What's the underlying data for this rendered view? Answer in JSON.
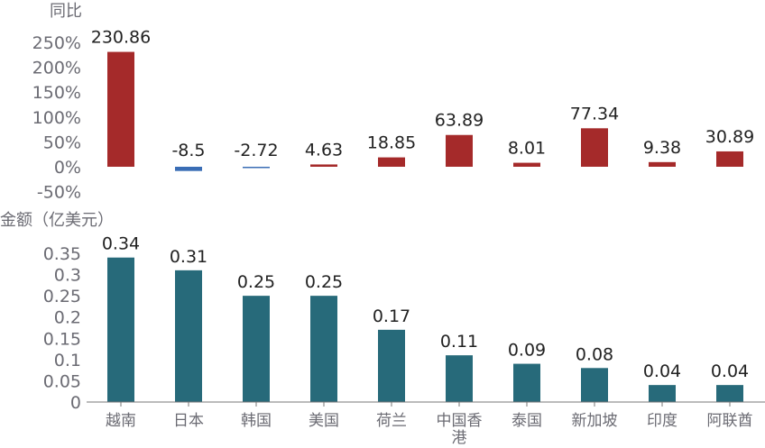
{
  "chart_data": [
    {
      "type": "bar",
      "title": "同比",
      "categories": [
        "越南",
        "日本",
        "韩国",
        "美国",
        "荷兰",
        "中国香港",
        "泰国",
        "新加坡",
        "印度",
        "阿联酋"
      ],
      "values": [
        230.86,
        -8.5,
        -2.72,
        4.63,
        18.85,
        63.89,
        8.01,
        77.34,
        9.38,
        30.89
      ],
      "value_labels": [
        "230.86",
        "-8.5",
        "-2.72",
        "4.63",
        "18.85",
        "63.89",
        "8.01",
        "77.34",
        "9.38",
        "30.89"
      ],
      "ylabel": "同比",
      "ylim": [
        -50,
        250
      ],
      "yticks": [
        "250%",
        "200%",
        "150%",
        "100%",
        "50%",
        "0%",
        "-50%"
      ],
      "ytick_values": [
        250,
        200,
        150,
        100,
        50,
        0,
        -50
      ],
      "colors": {
        "positive": "#a52a2a",
        "negative": "#3a6db5"
      },
      "grid": false
    },
    {
      "type": "bar",
      "title": "金额（亿美元）",
      "categories": [
        "越南",
        "日本",
        "韩国",
        "美国",
        "荷兰",
        "中国香港",
        "泰国",
        "新加坡",
        "印度",
        "阿联酋"
      ],
      "values": [
        0.34,
        0.31,
        0.25,
        0.25,
        0.17,
        0.11,
        0.09,
        0.08,
        0.04,
        0.04
      ],
      "value_labels": [
        "0.34",
        "0.31",
        "0.25",
        "0.25",
        "0.17",
        "0.11",
        "0.09",
        "0.08",
        "0.04",
        "0.04"
      ],
      "ylabel": "金额（亿美元）",
      "ylim": [
        0,
        0.35
      ],
      "yticks": [
        "0.35",
        "0.3",
        "0.25",
        "0.2",
        "0.15",
        "0.1",
        "0.05",
        "0"
      ],
      "ytick_values": [
        0.35,
        0.3,
        0.25,
        0.2,
        0.15,
        0.1,
        0.05,
        0
      ],
      "colors": {
        "bar": "#276a7a"
      },
      "grid": false
    }
  ]
}
